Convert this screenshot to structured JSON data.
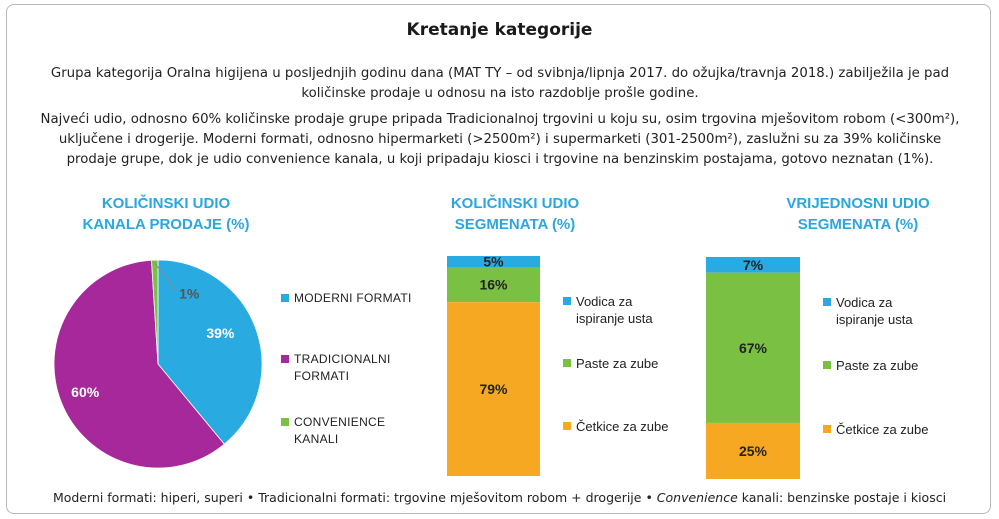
{
  "header": {
    "title": "Kretanje kategorije",
    "paragraph1": "Grupa kategorija Oralna higijena u posljednjih godinu dana (MAT TY – od svibnja/lipnja 2017. do ožujka/travnja 2018.) zabilježila je pad količinske prodaje u odnosu na isto razdoblje prošle godine.",
    "paragraph2": "Najveći udio, odnosno 60% količinske prodaje grupe pripada Tradicionalnoj trgovini u koju su, osim trgovina mješovitom robom (<300m²), uključene i drogerije. Moderni formati, odnosno hipermarketi (>2500m²) i supermarketi (301-2500m²), zaslužni su za 39% količinske prodaje grupe, dok je udio convenience kanala, u koji pripadaju kiosci i trgovine na benzinskim postajama, gotovo neznatan (1%)."
  },
  "chart_data": [
    {
      "type": "pie",
      "title_line1": "KOLIČINSKI UDIO",
      "title_line2": "KANALA PRODAJE (%)",
      "slices": [
        {
          "label": "MODERNI FORMATI",
          "value": 39,
          "data_label": "39%",
          "color": "#29abe2"
        },
        {
          "label": "TRADICIONALNI FORMATI",
          "value": 60,
          "data_label": "60%",
          "color": "#a6289a"
        },
        {
          "label": "CONVENIENCE KANALI",
          "value": 1,
          "data_label": "1%",
          "color": "#7ac143"
        }
      ]
    },
    {
      "type": "bar",
      "stacked": true,
      "title_line1": "KOLIČINSKI UDIO",
      "title_line2": "SEGMENATA (%)",
      "segments": [
        {
          "label": "Vodica za ispiranje usta",
          "value": 5,
          "data_label": "5%",
          "color": "#29abe2"
        },
        {
          "label": "Paste za zube",
          "value": 16,
          "data_label": "16%",
          "color": "#7ac143"
        },
        {
          "label": "Četkice za zube",
          "value": 79,
          "data_label": "79%",
          "color": "#f7a823"
        }
      ]
    },
    {
      "type": "bar",
      "stacked": true,
      "title_line1": "VRIJEDNOSNI UDIO",
      "title_line2": "SEGMENATA (%)",
      "segments": [
        {
          "label": "Vodica za ispiranje usta",
          "value": 7,
          "data_label": "7%",
          "color": "#29abe2"
        },
        {
          "label": "Paste za zube",
          "value": 67,
          "data_label": "67%",
          "color": "#7ac143"
        },
        {
          "label": "Četkice za zube",
          "value": 25,
          "data_label": "25%",
          "color": "#f7a823"
        }
      ]
    }
  ],
  "legends": {
    "pie": [
      {
        "line1": "MODERNI FORMATI",
        "line2": ""
      },
      {
        "line1": "TRADICIONALNI",
        "line2": "FORMATI"
      },
      {
        "line1": "CONVENIENCE",
        "line2": "KANALI"
      }
    ],
    "bars": [
      {
        "line1": "Vodica za",
        "line2": "ispiranje usta"
      },
      {
        "line1": "Paste za zube",
        "line2": ""
      },
      {
        "line1": "Četkice za zube",
        "line2": ""
      }
    ]
  },
  "footer": {
    "part1": "Moderni formati: hiperi, superi • Tradicionalni formati: trgovine mješovitom robom + drogerije • ",
    "part2": "Convenience",
    "part3": " kanali: benzinske postaje i kiosci"
  }
}
